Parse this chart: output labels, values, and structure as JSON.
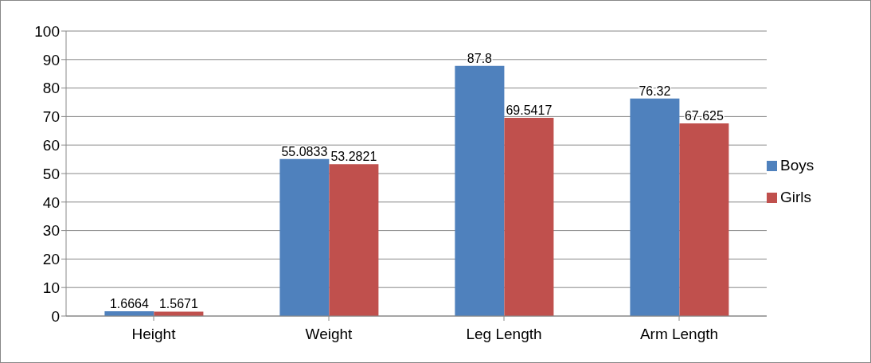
{
  "chart_data": {
    "type": "bar",
    "categories": [
      "Height",
      "Weight",
      "Leg Length",
      "Arm Length"
    ],
    "series": [
      {
        "name": "Boys",
        "color": "#4f81bd",
        "values": [
          1.6664,
          55.0833,
          87.8,
          76.32
        ]
      },
      {
        "name": "Girls",
        "color": "#c0504d",
        "values": [
          1.5671,
          53.2821,
          69.5417,
          67.625
        ]
      }
    ],
    "ylim": [
      0,
      100
    ],
    "yticks": [
      0,
      10,
      20,
      30,
      40,
      50,
      60,
      70,
      80,
      90,
      100
    ],
    "grid": "y",
    "legend": "right",
    "data_labels": true
  }
}
